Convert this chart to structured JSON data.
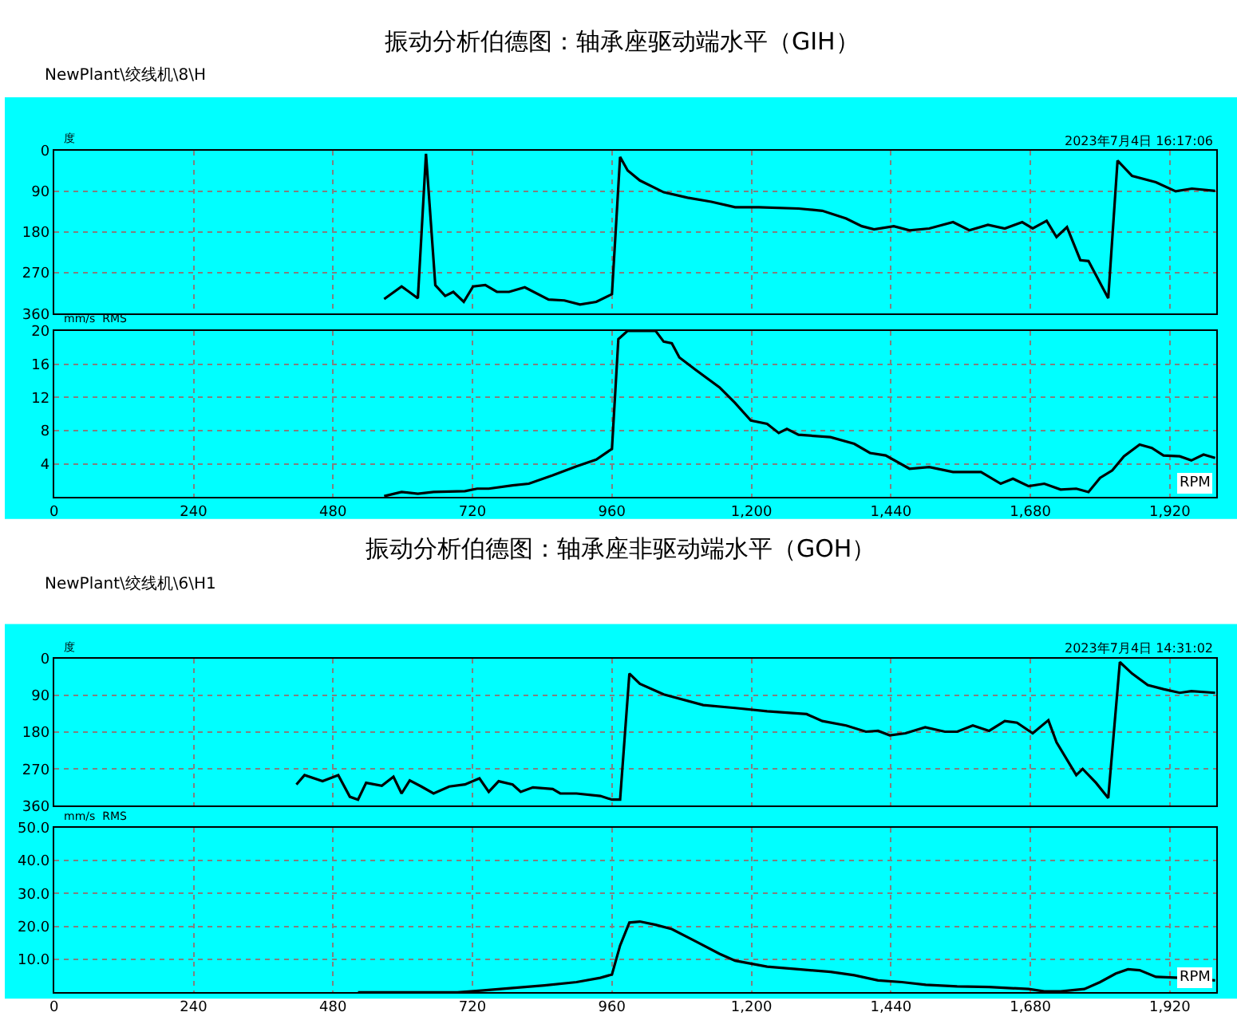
{
  "chart_data": [
    {
      "type": "line",
      "title": "振动分析伯德图：轴承座驱动端水平（GIH）",
      "annotations": [
        "NewPlant\\绞线机\\8\\H",
        "2023年7月4日 16:17:06"
      ],
      "ylabel": "度",
      "xlim": [
        0,
        2000
      ],
      "xticks": [
        0,
        240,
        480,
        720,
        960,
        1200,
        1440,
        1680,
        1920
      ],
      "ylim": [
        360,
        0
      ],
      "yticks": [
        0,
        90,
        180,
        270,
        360
      ],
      "grid": true,
      "tick_labels": "y",
      "series": [
        {
          "color": "#000000",
          "x": [
            568,
            598,
            626,
            640,
            656,
            673,
            687,
            705,
            721,
            742,
            762,
            783,
            810,
            851,
            878,
            905,
            933,
            960,
            974,
            987,
            1008,
            1049,
            1090,
            1131,
            1172,
            1213,
            1281,
            1322,
            1363,
            1390,
            1411,
            1445,
            1472,
            1506,
            1547,
            1575,
            1607,
            1636,
            1666,
            1684,
            1708,
            1725,
            1743,
            1766,
            1780,
            1814,
            1830,
            1855,
            1896,
            1930,
            1958,
            1998
          ],
          "values": [
            328,
            300,
            326,
            7,
            297,
            321,
            312,
            334,
            300,
            297,
            312,
            312,
            302,
            329,
            331,
            340,
            334,
            317,
            14,
            44,
            66,
            92,
            104,
            113,
            125,
            125,
            128,
            133,
            150,
            167,
            174,
            167,
            176,
            172,
            158,
            176,
            164,
            172,
            158,
            172,
            155,
            191,
            169,
            242,
            244,
            326,
            22,
            56,
            70,
            90,
            84,
            89
          ]
        }
      ]
    },
    {
      "type": "line",
      "ylabel": "mm/s  RMS",
      "xlabel": "RPM",
      "xlim": [
        0,
        2000
      ],
      "xticks": [
        0,
        240,
        480,
        720,
        960,
        {
          "value": 1200,
          "label": "1,200"
        },
        {
          "value": 1440,
          "label": "1,440"
        },
        {
          "value": 1680,
          "label": "1,680"
        },
        {
          "value": 1920,
          "label": "1,920"
        }
      ],
      "ylim": [
        0,
        20
      ],
      "yticks": [
        {
          "value": 0,
          "label": null
        },
        4,
        8,
        12,
        16,
        20
      ],
      "grid": true,
      "series": [
        {
          "color": "#000000",
          "x": [
            568,
            598,
            626,
            653,
            707,
            728,
            748,
            789,
            817,
            858,
            899,
            933,
            960,
            971,
            987,
            1035,
            1049,
            1063,
            1076,
            1104,
            1145,
            1172,
            1199,
            1227,
            1247,
            1261,
            1281,
            1336,
            1377,
            1404,
            1431,
            1472,
            1506,
            1547,
            1595,
            1629,
            1650,
            1677,
            1704,
            1732,
            1759,
            1780,
            1800,
            1821,
            1841,
            1868,
            1889,
            1909,
            1937,
            1957,
            1978,
            1998
          ],
          "values": [
            0.1,
            0.6,
            0.4,
            0.6,
            0.7,
            1.0,
            1.0,
            1.4,
            1.6,
            2.6,
            3.7,
            4.5,
            5.8,
            19,
            20,
            20,
            18.7,
            18.5,
            16.8,
            15.3,
            13.2,
            11.3,
            9.2,
            8.8,
            7.7,
            8.2,
            7.5,
            7.2,
            6.4,
            5.3,
            5.0,
            3.4,
            3.6,
            3.0,
            3.0,
            1.6,
            2.2,
            1.3,
            1.6,
            0.9,
            1.0,
            0.6,
            2.3,
            3.2,
            4.9,
            6.3,
            5.9,
            5.0,
            4.9,
            4.4,
            5.1,
            4.7
          ]
        }
      ]
    },
    {
      "type": "line",
      "title": "振动分析伯德图：轴承座非驱动端水平（GOH）",
      "annotations": [
        "NewPlant\\绞线机\\6\\H1",
        "2023年7月4日 14:31:02"
      ],
      "ylabel": "度",
      "xlim": [
        0,
        2000
      ],
      "xticks": [
        0,
        240,
        480,
        720,
        960,
        1200,
        1440,
        1680,
        1920
      ],
      "ylim": [
        360,
        0
      ],
      "yticks": [
        0,
        90,
        180,
        270,
        360
      ],
      "grid": true,
      "tick_labels": "y",
      "series": [
        {
          "color": "#000000",
          "x": [
            417,
            431,
            462,
            489,
            509,
            523,
            537,
            564,
            584,
            598,
            612,
            632,
            653,
            680,
            707,
            732,
            748,
            765,
            789,
            803,
            824,
            858,
            871,
            899,
            940,
            960,
            974,
            990,
            1008,
            1049,
            1117,
            1172,
            1227,
            1295,
            1322,
            1363,
            1397,
            1418,
            1438,
            1465,
            1499,
            1533,
            1554,
            1581,
            1609,
            1636,
            1657,
            1684,
            1711,
            1725,
            1759,
            1770,
            1793,
            1814,
            1834,
            1855,
            1882,
            1909,
            1937,
            1957,
            1998
          ],
          "values": [
            308,
            285,
            300,
            285,
            338,
            345,
            304,
            311,
            289,
            330,
            298,
            313,
            330,
            313,
            308,
            293,
            326,
            300,
            308,
            326,
            315,
            319,
            330,
            330,
            336,
            345,
            345,
            37,
            62,
            88,
            114,
            121,
            129,
            136,
            153,
            164,
            179,
            177,
            188,
            183,
            168,
            179,
            179,
            164,
            177,
            153,
            157,
            183,
            151,
            205,
            285,
            270,
            304,
            341,
            9,
            37,
            65,
            75,
            84,
            80,
            84
          ]
        }
      ]
    },
    {
      "type": "line",
      "ylabel": "mm/s  RMS",
      "xlabel": "RPM",
      "xlim": [
        0,
        2000
      ],
      "xticks": [
        0,
        240,
        480,
        720,
        960,
        {
          "value": 1200,
          "label": "1,200"
        },
        {
          "value": 1440,
          "label": "1,440"
        },
        {
          "value": 1680,
          "label": "1,680"
        },
        {
          "value": 1920,
          "label": "1,920"
        }
      ],
      "ylim": [
        0,
        50
      ],
      "yticks": [
        {
          "value": 0,
          "label": null
        },
        {
          "value": 10,
          "label": "10.0"
        },
        {
          "value": 20,
          "label": "20.0"
        },
        {
          "value": 30,
          "label": "30.0"
        },
        {
          "value": 40,
          "label": "40.0"
        },
        {
          "value": 50,
          "label": "50.0"
        }
      ],
      "grid": true,
      "series": [
        {
          "color": "#000000",
          "x": [
            523,
            694,
            735,
            789,
            844,
            899,
            940,
            960,
            974,
            990,
            1008,
            1035,
            1063,
            1104,
            1145,
            1172,
            1227,
            1281,
            1336,
            1377,
            1418,
            1459,
            1500,
            1554,
            1609,
            1677,
            1704,
            1732,
            1773,
            1800,
            1827,
            1848,
            1868,
            1896,
            1937,
            1964,
            1998
          ],
          "values": [
            0,
            0,
            0.5,
            1.3,
            2.1,
            3.1,
            4.4,
            5.4,
            14.2,
            21.2,
            21.5,
            20.5,
            19.2,
            15.5,
            11.7,
            9.6,
            7.8,
            7.0,
            6.2,
            5.2,
            3.6,
            3.1,
            2.3,
            1.8,
            1.6,
            1.0,
            0.3,
            0.3,
            1.0,
            3.1,
            5.7,
            7.0,
            6.7,
            4.7,
            4.4,
            4.1,
            3.6
          ]
        }
      ]
    }
  ]
}
